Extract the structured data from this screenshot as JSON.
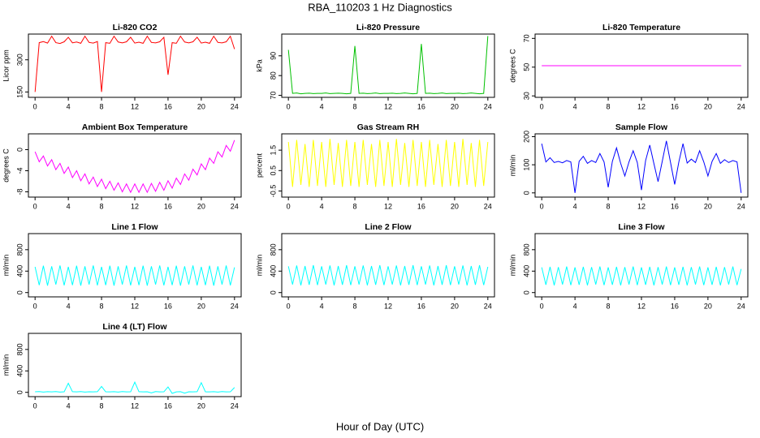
{
  "title": "RBA_110203  1 Hz Diagnostics",
  "xlabel": "Hour of Day (UTC)",
  "chart_data": [
    {
      "type": "line",
      "title": "Li-820 CO2",
      "ylabel": "Licor ppm",
      "color": "#ff0000",
      "xlim": [
        -0.8,
        24.8
      ],
      "xticks": [
        0,
        4,
        8,
        12,
        16,
        20,
        24
      ],
      "ylim": [
        125,
        420
      ],
      "yticks": [
        150,
        300
      ],
      "x": [
        0,
        0.5,
        1,
        1.5,
        2,
        2.5,
        3,
        3.5,
        4,
        4.5,
        5,
        5.5,
        6,
        6.5,
        7,
        7.5,
        8,
        8.5,
        9,
        9.5,
        10,
        10.5,
        11,
        11.5,
        12,
        12.5,
        13,
        13.5,
        14,
        14.5,
        15,
        15.5,
        16,
        16.5,
        17,
        17.5,
        18,
        18.5,
        19,
        19.5,
        20,
        20.5,
        21,
        21.5,
        22,
        22.5,
        23,
        23.5,
        24
      ],
      "values": [
        150,
        380,
        385,
        378,
        410,
        380,
        376,
        384,
        405,
        379,
        383,
        377,
        410,
        381,
        378,
        385,
        150,
        380,
        377,
        410,
        383,
        379,
        384,
        405,
        378,
        382,
        377,
        410,
        381,
        379,
        384,
        405,
        230,
        380,
        377,
        410,
        383,
        379,
        384,
        405,
        378,
        382,
        377,
        410,
        381,
        379,
        384,
        410,
        350
      ]
    },
    {
      "type": "line",
      "title": "Li-820 Pressure",
      "ylabel": "kPa",
      "color": "#00c000",
      "xlim": [
        -0.8,
        24.8
      ],
      "xticks": [
        0,
        4,
        8,
        12,
        16,
        20,
        24
      ],
      "ylim": [
        69,
        101
      ],
      "yticks": [
        70,
        80,
        90
      ],
      "x": [
        0,
        0.5,
        1,
        1.5,
        2,
        2.5,
        3,
        3.5,
        4,
        4.5,
        5,
        5.5,
        6,
        6.5,
        7,
        7.5,
        8,
        8.5,
        9,
        9.5,
        10,
        10.5,
        11,
        11.5,
        12,
        12.5,
        13,
        13.5,
        14,
        14.5,
        15,
        15.5,
        16,
        16.5,
        17,
        17.5,
        18,
        18.5,
        19,
        19.5,
        20,
        20.5,
        21,
        21.5,
        22,
        22.5,
        23,
        23.5,
        24
      ],
      "values": [
        93,
        71,
        71.2,
        70.8,
        71,
        71.1,
        70.9,
        71,
        71,
        71.2,
        70.9,
        71,
        71.1,
        71,
        70.8,
        71,
        95,
        71,
        71.1,
        70.9,
        71,
        71.2,
        70.9,
        71,
        71,
        71.1,
        70.9,
        71,
        71.2,
        71,
        70.8,
        71,
        96,
        71,
        71.1,
        70.9,
        71,
        71.2,
        70.9,
        71,
        71,
        71.1,
        70.9,
        71,
        71.2,
        71,
        70.8,
        71,
        100
      ]
    },
    {
      "type": "line",
      "title": "Li-820 Temperature",
      "ylabel": "degrees C",
      "color": "#ff00ff",
      "xlim": [
        -0.8,
        24.8
      ],
      "xticks": [
        0,
        4,
        8,
        12,
        16,
        20,
        24
      ],
      "ylim": [
        29,
        73
      ],
      "yticks": [
        30,
        50,
        70
      ],
      "x": [
        0,
        24
      ],
      "values": [
        51,
        51
      ]
    },
    {
      "type": "line",
      "title": "Ambient Box Temperature",
      "ylabel": "degrees C",
      "color": "#ff00ff",
      "xlim": [
        -0.8,
        24.8
      ],
      "xticks": [
        0,
        4,
        8,
        12,
        16,
        20,
        24
      ],
      "ylim": [
        -9,
        3
      ],
      "yticks": [
        -8,
        -4,
        0
      ],
      "x": [
        0,
        0.5,
        1,
        1.5,
        2,
        2.5,
        3,
        3.5,
        4,
        4.5,
        5,
        5.5,
        6,
        6.5,
        7,
        7.5,
        8,
        8.5,
        9,
        9.5,
        10,
        10.5,
        11,
        11.5,
        12,
        12.5,
        13,
        13.5,
        14,
        14.5,
        15,
        15.5,
        16,
        16.5,
        17,
        17.5,
        18,
        18.5,
        19,
        19.5,
        20,
        20.5,
        21,
        21.5,
        22,
        22.5,
        23,
        23.5,
        24
      ],
      "values": [
        -0.4,
        -2.3,
        -1.2,
        -3.1,
        -1.9,
        -3.8,
        -2.6,
        -4.5,
        -3.3,
        -5.3,
        -4,
        -5.9,
        -4.6,
        -6.5,
        -5.2,
        -7,
        -5.6,
        -7.4,
        -6,
        -7.7,
        -6.3,
        -8,
        -6.5,
        -8.1,
        -6.5,
        -8.1,
        -6.5,
        -8.1,
        -6.4,
        -7.9,
        -6.2,
        -7.7,
        -5.9,
        -7.3,
        -5.4,
        -6.6,
        -4.6,
        -5.8,
        -3.7,
        -4.8,
        -2.7,
        -3.8,
        -1.6,
        -2.6,
        -0.4,
        -1.4,
        0.8,
        -0.3,
        1.8
      ]
    },
    {
      "type": "line",
      "title": "Gas Stream RH",
      "ylabel": "percent",
      "color": "#ffff00",
      "xlim": [
        -0.8,
        24.8
      ],
      "xticks": [
        0,
        4,
        8,
        12,
        16,
        20,
        24
      ],
      "ylim": [
        -0.8,
        2.3
      ],
      "yticks": [
        -0.5,
        0.5,
        1.5
      ],
      "x": [
        0,
        0.5,
        1,
        1.5,
        2,
        2.5,
        3,
        3.5,
        4,
        4.5,
        5,
        5.5,
        6,
        6.5,
        7,
        7.5,
        8,
        8.5,
        9,
        9.5,
        10,
        10.5,
        11,
        11.5,
        12,
        12.5,
        13,
        13.5,
        14,
        14.5,
        15,
        15.5,
        16,
        16.5,
        17,
        17.5,
        18,
        18.5,
        19,
        19.5,
        20,
        20.5,
        21,
        21.5,
        22,
        22.5,
        23,
        23.5,
        24
      ],
      "values": [
        1.9,
        -0.3,
        2.0,
        -0.2,
        1.8,
        -0.3,
        2.0,
        -0.25,
        1.9,
        -0.3,
        2.05,
        -0.2,
        1.85,
        -0.3,
        2.0,
        -0.25,
        1.9,
        -0.3,
        2.0,
        -0.2,
        1.8,
        -0.3,
        2.0,
        -0.25,
        1.9,
        -0.3,
        2.05,
        -0.2,
        1.85,
        -0.3,
        2.0,
        -0.25,
        1.9,
        -0.3,
        2.0,
        -0.2,
        1.8,
        -0.3,
        2.0,
        -0.25,
        1.9,
        -0.3,
        2.05,
        -0.2,
        1.85,
        -0.3,
        2.0,
        -0.25,
        1.9
      ]
    },
    {
      "type": "line",
      "title": "Sample Flow",
      "ylabel": "ml/min",
      "color": "#0000ff",
      "xlim": [
        -0.8,
        24.8
      ],
      "xticks": [
        0,
        4,
        8,
        12,
        16,
        20,
        24
      ],
      "ylim": [
        -15,
        210
      ],
      "yticks": [
        0,
        100,
        200
      ],
      "x": [
        0,
        0.5,
        1,
        1.5,
        2,
        2.5,
        3,
        3.5,
        4,
        4.5,
        5,
        5.5,
        6,
        6.5,
        7,
        7.5,
        8,
        8.5,
        9,
        9.5,
        10,
        10.5,
        11,
        11.5,
        12,
        12.5,
        13,
        13.5,
        14,
        14.5,
        15,
        15.5,
        16,
        16.5,
        17,
        17.5,
        18,
        18.5,
        19,
        19.5,
        20,
        20.5,
        21,
        21.5,
        22,
        22.5,
        23,
        23.5,
        24
      ],
      "values": [
        175,
        110,
        125,
        108,
        112,
        107,
        115,
        110,
        0,
        112,
        130,
        105,
        115,
        108,
        140,
        110,
        20,
        112,
        160,
        105,
        60,
        110,
        150,
        108,
        10,
        115,
        170,
        104,
        40,
        112,
        185,
        108,
        30,
        110,
        175,
        106,
        120,
        108,
        150,
        110,
        60,
        112,
        140,
        105,
        118,
        108,
        115,
        110,
        0
      ]
    },
    {
      "type": "line",
      "title": "Line 1 Flow",
      "ylabel": "ml/min",
      "color": "#00ffff",
      "xlim": [
        -0.8,
        24.8
      ],
      "xticks": [
        0,
        4,
        8,
        12,
        16,
        20,
        24
      ],
      "ylim": [
        -80,
        1100
      ],
      "yticks": [
        0,
        400,
        800
      ],
      "x": [
        0,
        0.5,
        1,
        1.5,
        2,
        2.5,
        3,
        3.5,
        4,
        4.5,
        5,
        5.5,
        6,
        6.5,
        7,
        7.5,
        8,
        8.5,
        9,
        9.5,
        10,
        10.5,
        11,
        11.5,
        12,
        12.5,
        13,
        13.5,
        14,
        14.5,
        15,
        15.5,
        16,
        16.5,
        17,
        17.5,
        18,
        18.5,
        19,
        19.5,
        20,
        20.5,
        21,
        21.5,
        22,
        22.5,
        23,
        23.5,
        24
      ],
      "values": [
        480,
        140,
        500,
        130,
        490,
        150,
        505,
        135,
        480,
        140,
        500,
        130,
        490,
        150,
        505,
        135,
        480,
        140,
        500,
        130,
        490,
        150,
        505,
        135,
        480,
        140,
        500,
        130,
        490,
        150,
        505,
        135,
        480,
        140,
        500,
        130,
        490,
        150,
        505,
        135,
        480,
        140,
        500,
        130,
        490,
        150,
        505,
        135,
        470
      ]
    },
    {
      "type": "line",
      "title": "Line 2 Flow",
      "ylabel": "ml/min",
      "color": "#00ffff",
      "xlim": [
        -0.8,
        24.8
      ],
      "xticks": [
        0,
        4,
        8,
        12,
        16,
        20,
        24
      ],
      "ylim": [
        -80,
        1100
      ],
      "yticks": [
        0,
        400,
        800
      ],
      "x": [
        0,
        0.5,
        1,
        1.5,
        2,
        2.5,
        3,
        3.5,
        4,
        4.5,
        5,
        5.5,
        6,
        6.5,
        7,
        7.5,
        8,
        8.5,
        9,
        9.5,
        10,
        10.5,
        11,
        11.5,
        12,
        12.5,
        13,
        13.5,
        14,
        14.5,
        15,
        15.5,
        16,
        16.5,
        17,
        17.5,
        18,
        18.5,
        19,
        19.5,
        20,
        20.5,
        21,
        21.5,
        22,
        22.5,
        23,
        23.5,
        24
      ],
      "values": [
        490,
        150,
        505,
        135,
        495,
        145,
        510,
        140,
        490,
        150,
        505,
        135,
        495,
        145,
        510,
        140,
        490,
        150,
        505,
        135,
        495,
        145,
        510,
        140,
        490,
        150,
        505,
        135,
        495,
        145,
        510,
        140,
        490,
        150,
        505,
        135,
        495,
        145,
        510,
        140,
        490,
        150,
        505,
        135,
        495,
        145,
        510,
        140,
        480
      ]
    },
    {
      "type": "line",
      "title": "Line 3 Flow",
      "ylabel": "ml/min",
      "color": "#00ffff",
      "xlim": [
        -0.8,
        24.8
      ],
      "xticks": [
        0,
        4,
        8,
        12,
        16,
        20,
        24
      ],
      "ylim": [
        -80,
        1100
      ],
      "yticks": [
        0,
        400,
        800
      ],
      "x": [
        0,
        0.5,
        1,
        1.5,
        2,
        2.5,
        3,
        3.5,
        4,
        4.5,
        5,
        5.5,
        6,
        6.5,
        7,
        7.5,
        8,
        8.5,
        9,
        9.5,
        10,
        10.5,
        11,
        11.5,
        12,
        12.5,
        13,
        13.5,
        14,
        14.5,
        15,
        15.5,
        16,
        16.5,
        17,
        17.5,
        18,
        18.5,
        19,
        19.5,
        20,
        20.5,
        21,
        21.5,
        22,
        22.5,
        23,
        23.5,
        24
      ],
      "values": [
        470,
        145,
        480,
        135,
        475,
        150,
        485,
        140,
        470,
        145,
        480,
        135,
        475,
        150,
        485,
        140,
        470,
        145,
        480,
        135,
        475,
        150,
        485,
        140,
        470,
        145,
        480,
        135,
        475,
        150,
        485,
        140,
        470,
        145,
        480,
        135,
        475,
        150,
        485,
        140,
        470,
        145,
        480,
        135,
        475,
        150,
        485,
        140,
        440
      ]
    },
    {
      "type": "line",
      "title": "Line 4 (LT) Flow",
      "ylabel": "ml/min",
      "color": "#00ffff",
      "xlim": [
        -0.8,
        24.8
      ],
      "xticks": [
        0,
        4,
        8,
        12,
        16,
        20,
        24
      ],
      "ylim": [
        -80,
        1100
      ],
      "yticks": [
        0,
        400,
        800
      ],
      "x": [
        0,
        0.5,
        1,
        1.5,
        2,
        2.5,
        3,
        3.5,
        4,
        4.5,
        5,
        5.5,
        6,
        6.5,
        7,
        7.5,
        8,
        8.5,
        9,
        9.5,
        10,
        10.5,
        11,
        11.5,
        12,
        12.5,
        13,
        13.5,
        14,
        14.5,
        15,
        15.5,
        16,
        16.5,
        17,
        17.5,
        18,
        18.5,
        19,
        19.5,
        20,
        20.5,
        21,
        21.5,
        22,
        22.5,
        23,
        23.5,
        24
      ],
      "values": [
        10,
        15,
        5,
        12,
        8,
        14,
        6,
        10,
        170,
        12,
        8,
        15,
        6,
        10,
        9,
        12,
        110,
        10,
        8,
        12,
        6,
        14,
        9,
        10,
        190,
        12,
        8,
        10,
        -10,
        14,
        9,
        10,
        100,
        -20,
        8,
        12,
        -15,
        10,
        9,
        12,
        180,
        10,
        8,
        12,
        6,
        14,
        9,
        10,
        90
      ]
    }
  ]
}
